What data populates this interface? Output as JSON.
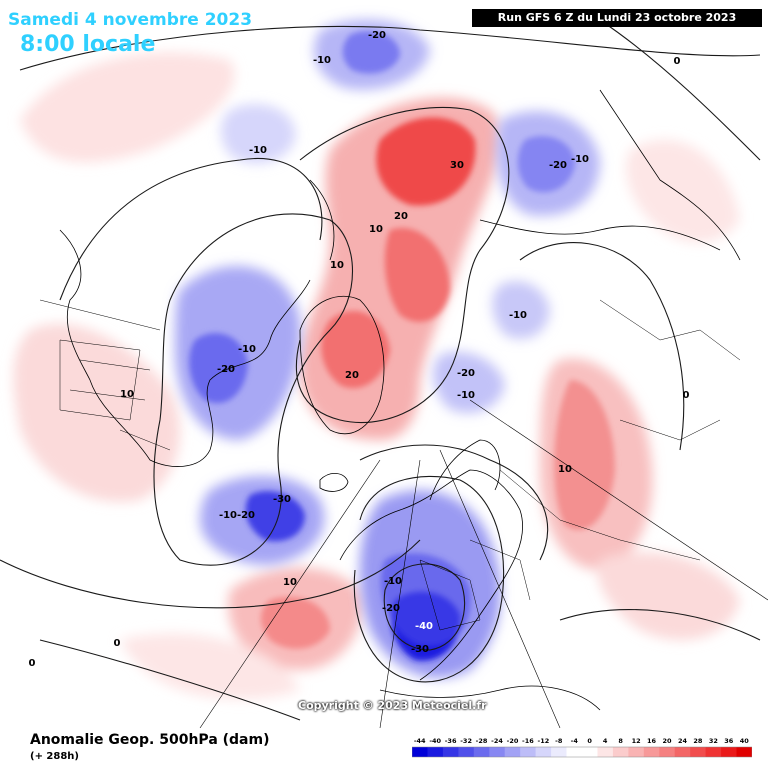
{
  "header": {
    "date": "Samedi 4 novembre 2023",
    "time": "8:00 locale",
    "run": "Run GFS 6 Z du Lundi 23 octobre 2023"
  },
  "footer": {
    "parameter": "Anomalie Geop. 500hPa (dam)",
    "forecast_hour": "(+ 288h)",
    "copyright": "Copyright © 2023 Meteociel.fr"
  },
  "legend": {
    "values": [
      "-44",
      "-40",
      "-36",
      "-32",
      "-28",
      "-24",
      "-20",
      "-16",
      "-12",
      "-8",
      "-4",
      "0",
      "4",
      "8",
      "12",
      "16",
      "20",
      "24",
      "28",
      "32",
      "36",
      "40"
    ],
    "colors": [
      "#0000d8",
      "#1a1ae0",
      "#3535e6",
      "#5050ea",
      "#6b6bee",
      "#8787f2",
      "#a2a2f5",
      "#bdbdf8",
      "#d6d6fb",
      "#ebebfd",
      "#ffffff",
      "#ffffff",
      "#fde6e6",
      "#fbcccc",
      "#f9b3b3",
      "#f79999",
      "#f58080",
      "#f36666",
      "#f14d4d",
      "#ef3333",
      "#ea1a1a",
      "#e00000"
    ]
  },
  "anomaly_labels": [
    {
      "text": "-10",
      "name": "label-nw-pacific"
    },
    {
      "text": "-20",
      "name": "label-bering"
    },
    {
      "text": "-10",
      "name": "label-north-pacific"
    },
    {
      "text": "30",
      "name": "label-siberia-high"
    },
    {
      "text": "20",
      "name": "label-arctic-ridge"
    },
    {
      "text": "10",
      "name": "label-arctic-10"
    },
    {
      "text": "-20",
      "name": "label-hudson-east-20"
    },
    {
      "text": "-10",
      "name": "label-hudson-east-10"
    },
    {
      "text": "10",
      "name": "label-canada-10"
    },
    {
      "text": "-10",
      "name": "label-hudson-10"
    },
    {
      "text": "-20",
      "name": "label-hudson-20"
    },
    {
      "text": "10",
      "name": "label-usa-10"
    },
    {
      "text": "20",
      "name": "label-greenland-20"
    },
    {
      "text": "-10",
      "name": "label-barents-10"
    },
    {
      "text": "-20",
      "name": "label-kara-20"
    },
    {
      "text": "-10",
      "name": "label-kara-10"
    },
    {
      "text": "10",
      "name": "label-asia-10"
    },
    {
      "text": "-10",
      "name": "label-atlantic-10"
    },
    {
      "text": "-20",
      "name": "label-atlantic-20"
    },
    {
      "text": "-30",
      "name": "label-atlantic-30"
    },
    {
      "text": "10",
      "name": "label-azores-10"
    },
    {
      "text": "-10",
      "name": "label-europe-10"
    },
    {
      "text": "-20",
      "name": "label-europe-20"
    },
    {
      "text": "-40",
      "name": "label-europe-40"
    },
    {
      "text": "-30",
      "name": "label-europe-30"
    },
    {
      "text": "0",
      "name": "label-zero-nw"
    },
    {
      "text": "0",
      "name": "label-zero-sw"
    },
    {
      "text": "0",
      "name": "label-zero-se"
    },
    {
      "text": "0",
      "name": "label-zero-ne"
    }
  ]
}
